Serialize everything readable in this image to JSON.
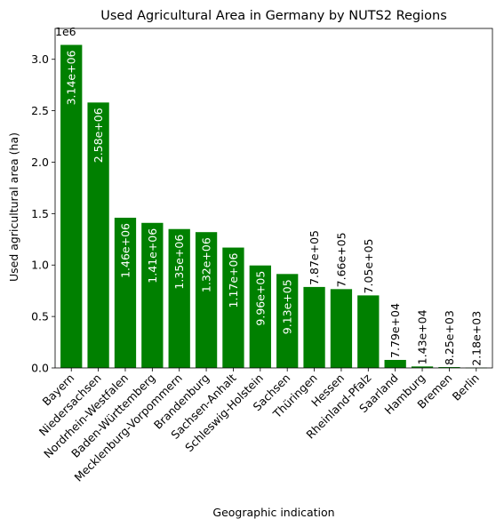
{
  "chart_data": {
    "type": "bar",
    "title": "Used Agricultural Area in Germany by NUTS2 Regions",
    "xlabel": "Geographic indication",
    "ylabel": "Used agricultural area (ha)",
    "offset_label": "1e6",
    "ylim": [
      0,
      3300000
    ],
    "yticks": [
      0,
      500000,
      1000000,
      1500000,
      2000000,
      2500000,
      3000000
    ],
    "ytick_labels": [
      "0.0",
      "0.5",
      "1.0",
      "1.5",
      "2.0",
      "2.5",
      "3.0"
    ],
    "grid": false,
    "legend": "none",
    "bar_color": "#008000",
    "categories": [
      "Bayern",
      "Niedersachsen",
      "Nordrhein-Westfalen",
      "Baden-Württemberg",
      "Mecklenburg-Vorpommern",
      "Brandenburg",
      "Sachsen-Anhalt",
      "Schleswig-Holstein",
      "Sachsen",
      "Thüringen",
      "Hessen",
      "Rheinland-Pfalz",
      "Saarland",
      "Hamburg",
      "Bremen",
      "Berlin"
    ],
    "values": [
      3140000,
      2580000,
      1460000,
      1410000,
      1350000,
      1320000,
      1170000,
      996000,
      913000,
      787000,
      766000,
      705000,
      77900,
      14300,
      8250,
      2180
    ],
    "value_labels": [
      "3.14e+06",
      "2.58e+06",
      "1.46e+06",
      "1.41e+06",
      "1.35e+06",
      "1.32e+06",
      "1.17e+06",
      "9.96e+05",
      "9.13e+05",
      "7.87e+05",
      "7.66e+05",
      "7.05e+05",
      "7.79e+04",
      "1.43e+04",
      "8.25e+03",
      "2.18e+03"
    ]
  }
}
